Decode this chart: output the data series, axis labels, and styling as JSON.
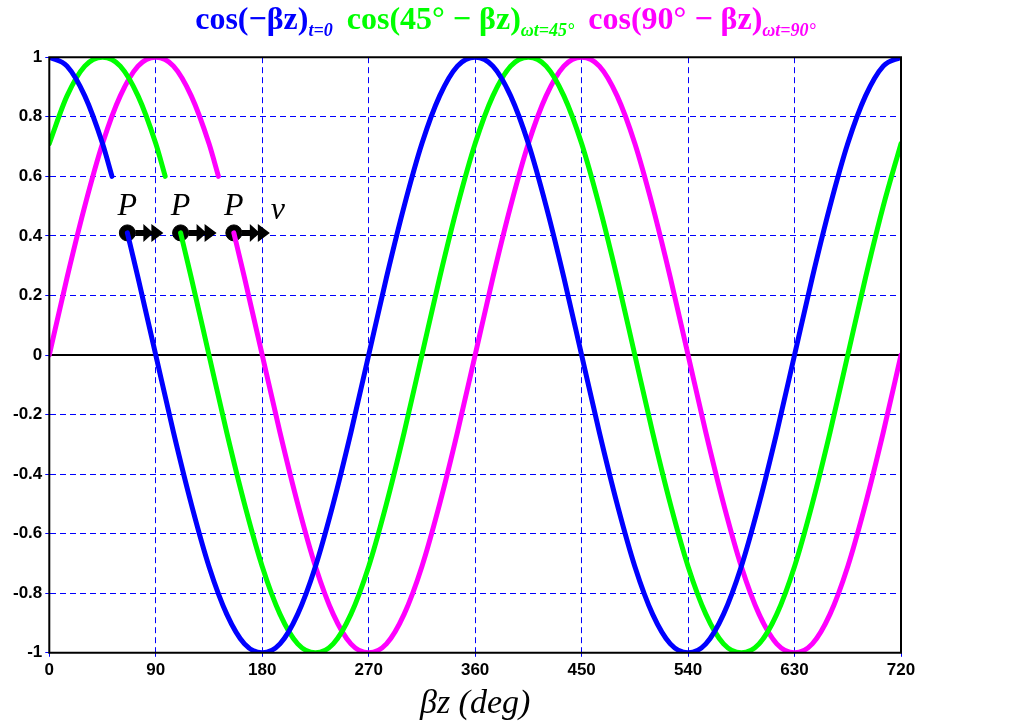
{
  "chart_data": {
    "type": "line",
    "xlabel": "βz (deg)",
    "legend": "top",
    "grid": true,
    "marker": "none",
    "xlim": [
      0,
      720
    ],
    "xticks": [
      0,
      90,
      180,
      270,
      360,
      450,
      540,
      630,
      720
    ],
    "ylim": [
      -1,
      1
    ],
    "yticks": [
      -1,
      -0.8,
      -0.6,
      -0.4,
      -0.2,
      0,
      0.2,
      0.4,
      0.6,
      0.8,
      1
    ],
    "ref_lines": [
      {
        "axis": "y",
        "value": 0,
        "color": "#000000"
      }
    ],
    "series": [
      {
        "name": "cos(−βz)$_{t=0}$",
        "color": "#0000ff",
        "x": [
          0,
          15,
          30,
          45,
          53,
          60,
          66,
          75,
          90,
          105,
          120,
          135,
          150,
          165,
          180,
          195,
          210,
          225,
          240,
          255,
          270,
          285,
          300,
          315,
          330,
          345,
          360,
          375,
          390,
          405,
          420,
          435,
          450,
          465,
          480,
          495,
          510,
          525,
          540,
          555,
          570,
          585,
          600,
          615,
          630,
          645,
          660,
          675,
          690,
          705,
          720
        ],
        "values": [
          1,
          0.97,
          0.87,
          0.71,
          0.6,
          null,
          0.41,
          0.26,
          0,
          -0.26,
          -0.5,
          -0.71,
          -0.87,
          -0.97,
          -1,
          -0.97,
          -0.87,
          -0.71,
          -0.5,
          -0.26,
          0,
          0.26,
          0.5,
          0.71,
          0.87,
          0.97,
          1,
          0.97,
          0.87,
          0.71,
          0.5,
          0.26,
          0,
          -0.26,
          -0.5,
          -0.71,
          -0.87,
          -0.97,
          -1,
          -0.97,
          -0.87,
          -0.71,
          -0.5,
          -0.26,
          0,
          0.26,
          0.5,
          0.71,
          0.87,
          0.97,
          1
        ]
      },
      {
        "name": "cos(45° − βz)$_{ωt=45°}$",
        "color": "#00ff00",
        "x": [
          0,
          15,
          30,
          45,
          60,
          75,
          90,
          98,
          105,
          111,
          120,
          135,
          150,
          165,
          180,
          195,
          210,
          225,
          240,
          255,
          270,
          285,
          300,
          315,
          330,
          345,
          360,
          375,
          390,
          405,
          420,
          435,
          450,
          465,
          480,
          495,
          510,
          525,
          540,
          555,
          570,
          585,
          600,
          615,
          630,
          645,
          660,
          675,
          690,
          705,
          720
        ],
        "values": [
          0.71,
          0.87,
          0.97,
          1,
          0.97,
          0.87,
          0.71,
          0.6,
          null,
          0.41,
          0.26,
          0,
          -0.26,
          -0.5,
          -0.71,
          -0.87,
          -0.97,
          -1,
          -0.97,
          -0.87,
          -0.71,
          -0.5,
          -0.26,
          0,
          0.26,
          0.5,
          0.71,
          0.87,
          0.97,
          1,
          0.97,
          0.87,
          0.71,
          0.5,
          0.26,
          0,
          -0.26,
          -0.5,
          -0.71,
          -0.87,
          -0.97,
          -1,
          -0.97,
          -0.87,
          -0.71,
          -0.5,
          -0.26,
          0,
          0.26,
          0.5,
          0.71
        ]
      },
      {
        "name": "cos(90° − βz)$_{ωt=90°}$",
        "color": "#ff00ff",
        "x": [
          0,
          15,
          30,
          45,
          60,
          75,
          90,
          105,
          120,
          135,
          143,
          150,
          156,
          165,
          180,
          195,
          210,
          225,
          240,
          255,
          270,
          285,
          300,
          315,
          330,
          345,
          360,
          375,
          390,
          405,
          420,
          435,
          450,
          465,
          480,
          495,
          510,
          525,
          540,
          555,
          570,
          585,
          600,
          615,
          630,
          645,
          660,
          675,
          690,
          705,
          720
        ],
        "values": [
          0,
          0.26,
          0.5,
          0.71,
          0.87,
          0.97,
          1,
          0.97,
          0.87,
          0.71,
          0.6,
          null,
          0.41,
          0.26,
          0,
          -0.26,
          -0.5,
          -0.71,
          -0.87,
          -0.97,
          -1,
          -0.97,
          -0.87,
          -0.71,
          -0.5,
          -0.26,
          0,
          0.26,
          0.5,
          0.71,
          0.87,
          0.97,
          1,
          0.97,
          0.87,
          0.71,
          0.5,
          0.26,
          0,
          -0.26,
          -0.5,
          -0.71,
          -0.87,
          -0.97,
          -1,
          -0.97,
          -0.87,
          -0.71,
          -0.5,
          -0.26,
          0
        ]
      },
      {
        "type": "scatter",
        "marker": "circle",
        "color": "#000000",
        "x": [
          66,
          111,
          156
        ],
        "values": [
          0.41,
          0.41,
          0.41
        ]
      }
    ],
    "annotations": [
      {
        "text": "P",
        "x": 66,
        "y": 0.41
      },
      {
        "text": "P",
        "x": 111,
        "y": 0.41
      },
      {
        "text": "P",
        "x": 156,
        "y": 0.41
      },
      "v"
    ]
  }
}
